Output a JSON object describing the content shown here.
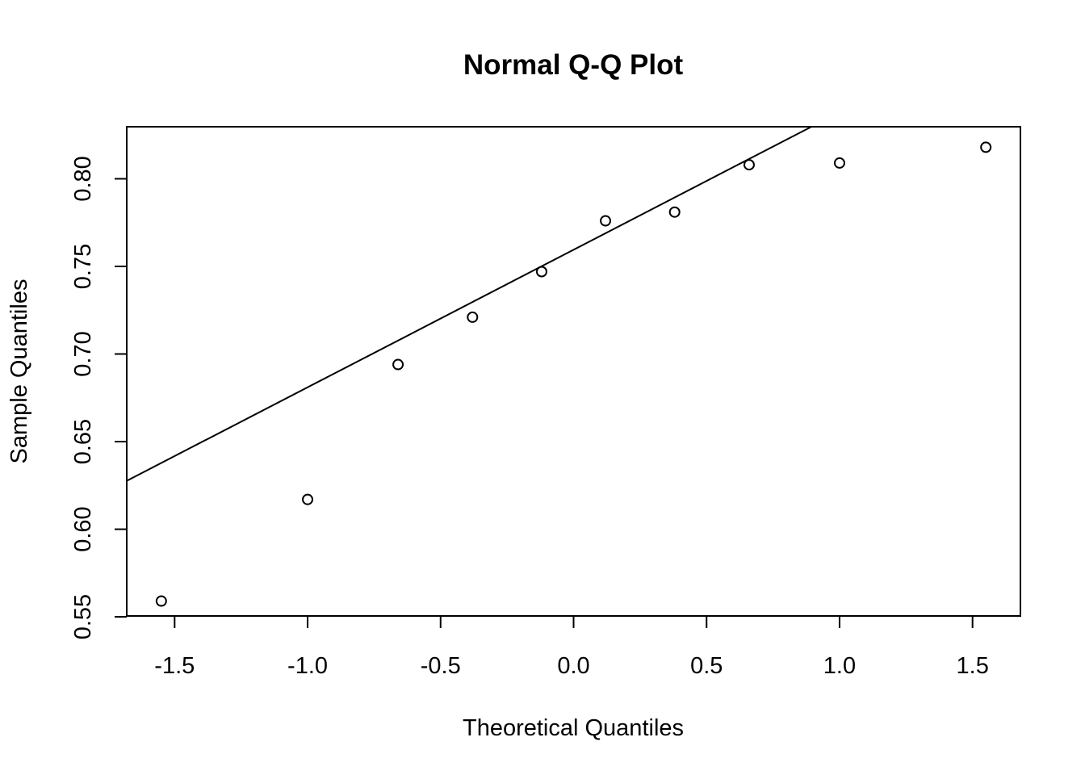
{
  "chart_data": {
    "type": "scatter",
    "title": "Normal Q-Q Plot",
    "xlabel": "Theoretical Quantiles",
    "ylabel": "Sample Quantiles",
    "xlim": [
      -1.68,
      1.68
    ],
    "ylim": [
      0.5505,
      0.8297
    ],
    "xticks": [
      -1.5,
      -1.0,
      -0.5,
      0.0,
      0.5,
      1.0,
      1.5
    ],
    "xtick_labels": [
      "-1.5",
      "-1.0",
      "-0.5",
      "0.0",
      "0.5",
      "1.0",
      "1.5"
    ],
    "yticks": [
      0.55,
      0.6,
      0.65,
      0.7,
      0.75,
      0.8
    ],
    "ytick_labels": [
      "0.55",
      "0.60",
      "0.65",
      "0.70",
      "0.75",
      "0.80"
    ],
    "grid": false,
    "marker": "open-circle",
    "color": "#000000",
    "points": [
      {
        "x": -1.55,
        "y": 0.559
      },
      {
        "x": -1.0,
        "y": 0.617
      },
      {
        "x": -0.66,
        "y": 0.694
      },
      {
        "x": -0.38,
        "y": 0.721
      },
      {
        "x": -0.12,
        "y": 0.747
      },
      {
        "x": 0.12,
        "y": 0.776
      },
      {
        "x": 0.38,
        "y": 0.781
      },
      {
        "x": 0.66,
        "y": 0.808
      },
      {
        "x": 1.0,
        "y": 0.809
      },
      {
        "x": 1.55,
        "y": 0.818
      }
    ],
    "reference_line": {
      "intercept": 0.7595,
      "slope": 0.0785
    }
  }
}
